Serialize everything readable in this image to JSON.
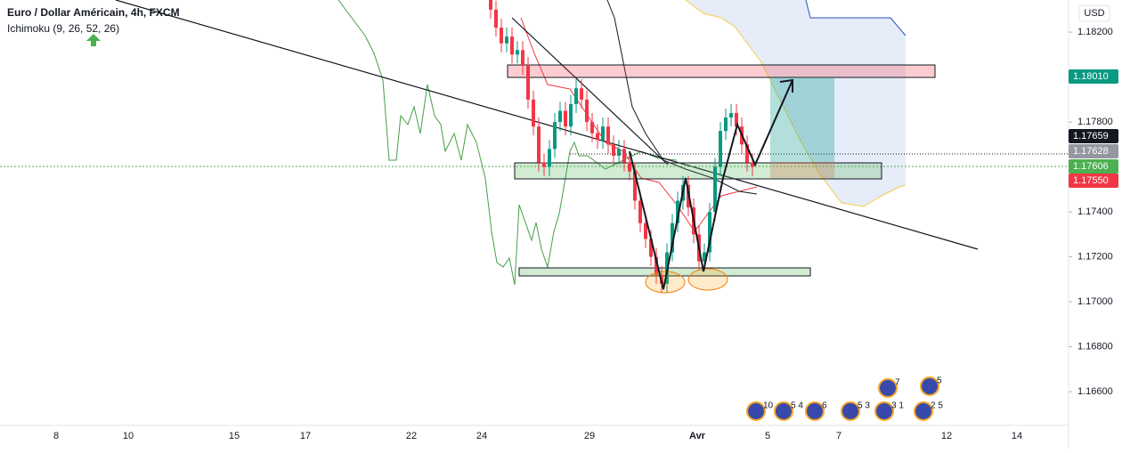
{
  "header": {
    "title": "Euro / Dollar Américain, 4h, FXCM",
    "indicator": "Ichimoku (9, 26, 52, 26)"
  },
  "price_axis": {
    "currency": "USD",
    "ylim": [
      1.16434,
      1.18343
    ],
    "ticks": [
      {
        "value": 1.182,
        "label": "1.18200"
      },
      {
        "value": 1.178,
        "label": "1.17800"
      },
      {
        "value": 1.174,
        "label": "1.17400"
      },
      {
        "value": 1.172,
        "label": "1.17200"
      },
      {
        "value": 1.17,
        "label": "1.17000"
      },
      {
        "value": 1.168,
        "label": "1.16800"
      },
      {
        "value": 1.166,
        "label": "1.16600"
      }
    ],
    "tags": [
      {
        "value": 1.1801,
        "label": "1.18010",
        "color": "#089981"
      },
      {
        "value": 1.17659,
        "label": "1.17659",
        "color": "#131722"
      },
      {
        "value": 1.17628,
        "label": "1.17628",
        "color": "#9598a1"
      },
      {
        "value": 1.17606,
        "label": "1.17606",
        "color": "#4caf50"
      },
      {
        "value": 1.1755,
        "label": "1.17550",
        "color": "#f23645"
      }
    ]
  },
  "time_axis": {
    "labels": [
      "8",
      "10",
      "15",
      "17",
      "22",
      "24",
      "29",
      "Avr",
      "5",
      "7",
      "12",
      "14"
    ]
  },
  "candles": [
    [
      1.1836,
      1.184,
      1.1826,
      1.183
    ],
    [
      1.183,
      1.1834,
      1.1818,
      1.1822
    ],
    [
      1.1822,
      1.1826,
      1.1811,
      1.1815
    ],
    [
      1.1815,
      1.1822,
      1.1811,
      1.1818
    ],
    [
      1.1818,
      1.1822,
      1.1806,
      1.181
    ],
    [
      1.181,
      1.1816,
      1.1806,
      1.1812
    ],
    [
      1.1812,
      1.1816,
      1.1801,
      1.1805
    ],
    [
      1.1805,
      1.1809,
      1.1786,
      1.179
    ],
    [
      1.179,
      1.1794,
      1.1774,
      1.1778
    ],
    [
      1.1778,
      1.1782,
      1.1758,
      1.1762
    ],
    [
      1.1762,
      1.1766,
      1.1756,
      1.176
    ],
    [
      1.176,
      1.1772,
      1.1756,
      1.1768
    ],
    [
      1.1768,
      1.1784,
      1.1764,
      1.178
    ],
    [
      1.178,
      1.1789,
      1.1776,
      1.1785
    ],
    [
      1.1785,
      1.1789,
      1.1774,
      1.1778
    ],
    [
      1.1778,
      1.1792,
      1.1774,
      1.1788
    ],
    [
      1.1788,
      1.1799,
      1.1784,
      1.1795
    ],
    [
      1.1795,
      1.1799,
      1.1786,
      1.179
    ],
    [
      1.179,
      1.1794,
      1.1776,
      1.178
    ],
    [
      1.178,
      1.1784,
      1.1771,
      1.1775
    ],
    [
      1.1775,
      1.1779,
      1.1768,
      1.1772
    ],
    [
      1.1772,
      1.1782,
      1.1768,
      1.1778
    ],
    [
      1.1778,
      1.1782,
      1.1766,
      1.177
    ],
    [
      1.177,
      1.1774,
      1.1761,
      1.1765
    ],
    [
      1.1765,
      1.1772,
      1.1761,
      1.1768
    ],
    [
      1.1768,
      1.1772,
      1.1758,
      1.1762
    ],
    [
      1.1762,
      1.1766,
      1.1754,
      1.1758
    ],
    [
      1.1758,
      1.1762,
      1.1741,
      1.1745
    ],
    [
      1.1745,
      1.1749,
      1.1731,
      1.1735
    ],
    [
      1.1735,
      1.1739,
      1.1724,
      1.1728
    ],
    [
      1.1728,
      1.1732,
      1.1716,
      1.172
    ],
    [
      1.172,
      1.1724,
      1.1708,
      1.1712
    ],
    [
      1.1712,
      1.1716,
      1.1704,
      1.1708
    ],
    [
      1.1708,
      1.1726,
      1.1704,
      1.1722
    ],
    [
      1.1722,
      1.1739,
      1.1718,
      1.1735
    ],
    [
      1.1735,
      1.1749,
      1.1731,
      1.1745
    ],
    [
      1.1745,
      1.1756,
      1.1741,
      1.1752
    ],
    [
      1.1752,
      1.1756,
      1.1738,
      1.1742
    ],
    [
      1.1742,
      1.1746,
      1.1726,
      1.173
    ],
    [
      1.173,
      1.1734,
      1.1714,
      1.1718
    ],
    [
      1.1718,
      1.1726,
      1.1714,
      1.1722
    ],
    [
      1.1722,
      1.1744,
      1.1718,
      1.174
    ],
    [
      1.174,
      1.1764,
      1.1736,
      1.176
    ],
    [
      1.176,
      1.178,
      1.1756,
      1.1776
    ],
    [
      1.1776,
      1.1786,
      1.1772,
      1.1782
    ],
    [
      1.1782,
      1.1788,
      1.1778,
      1.1784
    ],
    [
      1.1784,
      1.1788,
      1.1774,
      1.1778
    ],
    [
      1.1778,
      1.1782,
      1.1766,
      1.177
    ],
    [
      1.177,
      1.1774,
      1.1758,
      1.1762
    ],
    [
      1.1762,
      1.1766,
      1.1756,
      1.176
    ]
  ],
  "events": [
    "10",
    "5 4",
    "6",
    "5 3",
    "3 1",
    "2 5",
    "7",
    "5"
  ]
}
